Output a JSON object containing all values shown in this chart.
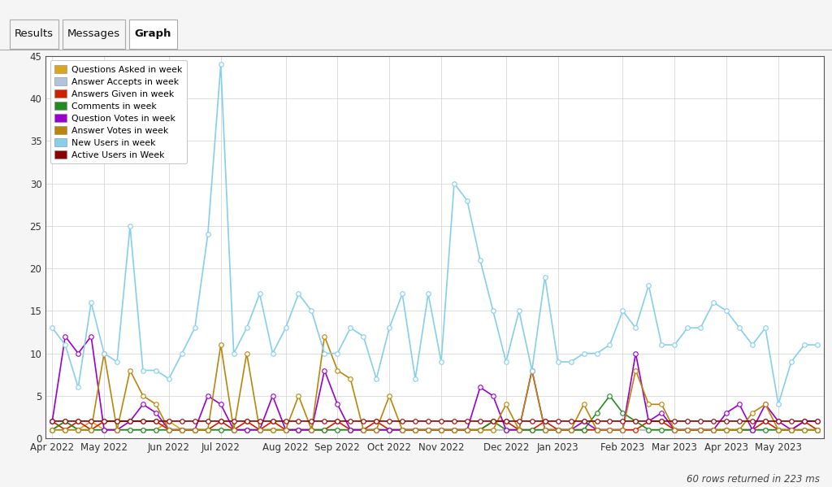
{
  "new_users": [
    13,
    11,
    6,
    16,
    10,
    9,
    25,
    8,
    8,
    7,
    10,
    13,
    24,
    44,
    10,
    13,
    17,
    10,
    13,
    17,
    15,
    10,
    10,
    13,
    12,
    7,
    13,
    17,
    7,
    17,
    9,
    30,
    28,
    21,
    15,
    9,
    15,
    8,
    19,
    9,
    9,
    10,
    10,
    11,
    15,
    13,
    18,
    11,
    11,
    13,
    13,
    16,
    15,
    13,
    11,
    13,
    4,
    9,
    11,
    11
  ],
  "questions_asked": [
    1,
    2,
    1,
    2,
    1,
    1,
    1,
    1,
    1,
    2,
    1,
    1,
    1,
    1,
    1,
    1,
    1,
    1,
    1,
    1,
    1,
    1,
    1,
    1,
    1,
    1,
    1,
    1,
    1,
    1,
    1,
    1,
    1,
    1,
    1,
    1,
    1,
    1,
    1,
    1,
    1,
    1,
    1,
    1,
    1,
    1,
    1,
    1,
    1,
    1,
    1,
    1,
    1,
    1,
    1,
    1,
    1,
    1,
    1,
    1
  ],
  "answer_accepts": [
    1,
    1,
    1,
    1,
    1,
    1,
    1,
    1,
    1,
    1,
    1,
    1,
    1,
    1,
    1,
    1,
    1,
    1,
    1,
    1,
    1,
    1,
    1,
    1,
    1,
    1,
    1,
    1,
    1,
    1,
    1,
    1,
    1,
    1,
    1,
    1,
    1,
    1,
    1,
    1,
    1,
    1,
    1,
    1,
    1,
    1,
    1,
    1,
    1,
    1,
    1,
    1,
    1,
    1,
    1,
    1,
    1,
    1,
    1,
    1
  ],
  "answers_given": [
    2,
    1,
    2,
    1,
    2,
    2,
    2,
    2,
    2,
    1,
    1,
    1,
    1,
    2,
    1,
    2,
    1,
    2,
    1,
    1,
    1,
    1,
    2,
    1,
    1,
    2,
    1,
    1,
    1,
    1,
    1,
    1,
    1,
    1,
    2,
    2,
    1,
    1,
    2,
    1,
    1,
    1,
    1,
    1,
    1,
    1,
    2,
    2,
    1,
    1,
    1,
    1,
    1,
    1,
    1,
    2,
    1,
    1,
    2,
    1
  ],
  "comments": [
    1,
    2,
    1,
    1,
    1,
    1,
    1,
    1,
    1,
    1,
    1,
    1,
    1,
    1,
    1,
    1,
    1,
    1,
    1,
    1,
    1,
    1,
    1,
    1,
    1,
    1,
    1,
    1,
    1,
    1,
    1,
    1,
    1,
    1,
    2,
    1,
    1,
    1,
    1,
    1,
    1,
    1,
    3,
    5,
    3,
    2,
    1,
    1,
    1,
    1,
    1,
    1,
    1,
    1,
    1,
    1,
    1,
    1,
    1,
    1
  ],
  "question_votes": [
    2,
    12,
    10,
    12,
    1,
    1,
    2,
    4,
    3,
    1,
    1,
    1,
    5,
    4,
    1,
    1,
    1,
    5,
    1,
    1,
    1,
    8,
    4,
    1,
    1,
    1,
    1,
    1,
    1,
    1,
    1,
    1,
    1,
    6,
    5,
    1,
    1,
    8,
    1,
    1,
    1,
    2,
    1,
    1,
    1,
    10,
    2,
    3,
    1,
    1,
    1,
    1,
    3,
    4,
    1,
    4,
    2,
    1,
    2,
    2
  ],
  "answer_votes": [
    1,
    1,
    1,
    1,
    10,
    1,
    8,
    5,
    4,
    1,
    1,
    1,
    1,
    11,
    1,
    10,
    1,
    1,
    1,
    5,
    1,
    12,
    8,
    7,
    1,
    1,
    5,
    1,
    1,
    1,
    1,
    1,
    1,
    1,
    1,
    4,
    1,
    8,
    1,
    1,
    1,
    4,
    1,
    1,
    1,
    8,
    4,
    4,
    1,
    1,
    1,
    1,
    1,
    1,
    3,
    4,
    1,
    1,
    1,
    1
  ],
  "active_users": [
    2,
    2,
    2,
    2,
    2,
    2,
    2,
    2,
    2,
    2,
    2,
    2,
    2,
    2,
    2,
    2,
    2,
    2,
    2,
    2,
    2,
    2,
    2,
    2,
    2,
    2,
    2,
    2,
    2,
    2,
    2,
    2,
    2,
    2,
    2,
    2,
    2,
    2,
    2,
    2,
    2,
    2,
    2,
    2,
    2,
    2,
    2,
    2,
    2,
    2,
    2,
    2,
    2,
    2,
    2,
    2,
    2,
    2,
    2,
    2
  ],
  "x_tick_pos": [
    0,
    4,
    9,
    13,
    18,
    22,
    26,
    30,
    35,
    39,
    44,
    48,
    52,
    56
  ],
  "x_tick_labels": [
    "Apr 2022",
    "May 2022",
    "Jun 2022",
    "Jul 2022",
    "Aug 2022",
    "Sep 2022",
    "Oct 2022",
    "Nov 2022",
    "Dec 2022",
    "Jan 2023",
    "Feb 2023",
    "Mar 2023",
    "Apr 2023",
    "May 2023"
  ],
  "ylim": [
    0,
    45
  ],
  "yticks": [
    0,
    5,
    10,
    15,
    20,
    25,
    30,
    35,
    40,
    45
  ],
  "color_new_users": "#87CEEB",
  "color_questions": "#DAA520",
  "color_accepts": "#B0C4DE",
  "color_answers": "#CC2200",
  "color_comments": "#228B22",
  "color_qvotes": "#9900CC",
  "color_avotes": "#B8860B",
  "color_ausers": "#8B0000",
  "legend_labels": [
    "Questions Asked in week",
    "Answer Accepts in week",
    "Answers Given in week",
    "Comments in week",
    "Question Votes in week",
    "Answer Votes in week",
    "New Users in week",
    "Active Users in Week"
  ],
  "footer": "60 rows returned in 223 ms",
  "tab_labels": [
    "Results",
    "Messages",
    "Graph"
  ],
  "green_bar_color": "#4CAF50",
  "bg_color": "#ffffff",
  "tab_bg": "#f5f5f5",
  "grid_color": "#d0d0d0"
}
